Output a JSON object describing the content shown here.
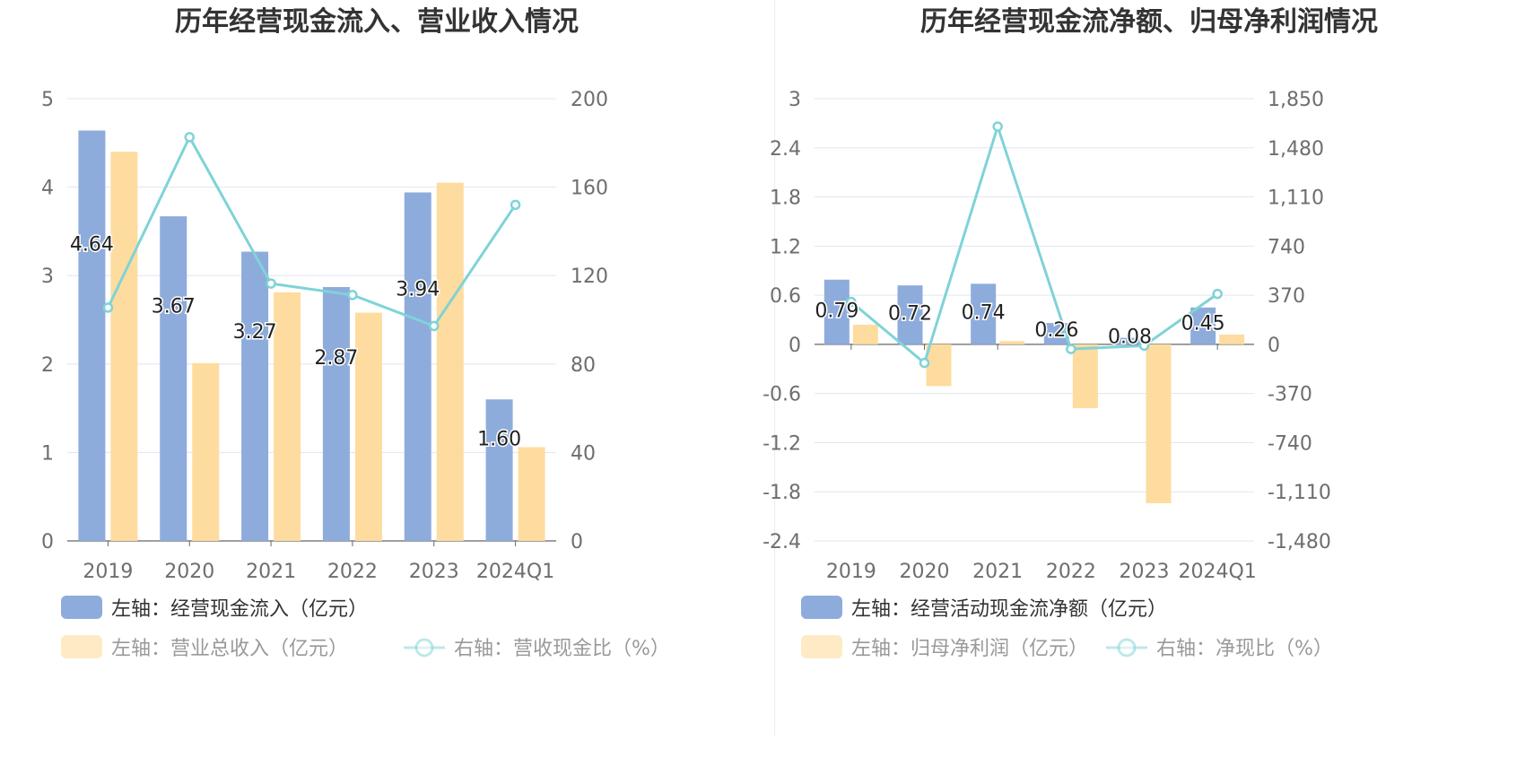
{
  "chart_data": [
    {
      "type": "bar",
      "title": "历年经营现金流入、营业收入情况",
      "categories": [
        "2019",
        "2020",
        "2021",
        "2022",
        "2023",
        "2024Q1"
      ],
      "y_left": {
        "ticks": [
          "0",
          "1",
          "2",
          "3",
          "4",
          "5"
        ],
        "range": [
          0,
          5
        ]
      },
      "y_right": {
        "ticks": [
          "0",
          "40",
          "80",
          "120",
          "160",
          "200"
        ],
        "range": [
          0,
          200
        ]
      },
      "grid": true,
      "series": [
        {
          "name": "左轴：经营现金流入（亿元）",
          "kind": "bar",
          "axis": "left",
          "color": "#8eacdb",
          "values": [
            4.64,
            3.67,
            3.27,
            2.87,
            3.94,
            1.6
          ],
          "labels": [
            "4.64",
            "3.67",
            "3.27",
            "2.87",
            "3.94",
            "1.60"
          ]
        },
        {
          "name": "左轴：营业总收入（亿元）",
          "kind": "bar",
          "axis": "left",
          "color": "#fedc9f",
          "values": [
            4.4,
            2.01,
            2.81,
            2.58,
            4.05,
            1.06
          ]
        },
        {
          "name": "右轴：营收现金比（%）",
          "kind": "line",
          "axis": "right",
          "color": "#7fd3d7",
          "values": [
            105.5,
            182.6,
            116.4,
            111.2,
            97.2,
            152.0
          ]
        }
      ],
      "legend_position": "bottom-left"
    },
    {
      "type": "bar",
      "title": "历年经营现金流净额、归母净利润情况",
      "categories": [
        "2019",
        "2020",
        "2021",
        "2022",
        "2023",
        "2024Q1"
      ],
      "y_left": {
        "ticks": [
          "-2.4",
          "-1.8",
          "-1.2",
          "-0.6",
          "0",
          "0.6",
          "1.2",
          "1.8",
          "2.4",
          "3"
        ],
        "range": [
          -2.4,
          3
        ]
      },
      "y_right": {
        "ticks": [
          "-1,480",
          "-1,110",
          "-740",
          "-370",
          "0",
          "370",
          "740",
          "1,110",
          "1,480",
          "1,850"
        ],
        "range": [
          -1480,
          1850
        ]
      },
      "grid": true,
      "series": [
        {
          "name": "左轴：经营活动现金流净额（亿元）",
          "kind": "bar",
          "axis": "left",
          "color": "#8eacdb",
          "values": [
            0.79,
            0.72,
            0.74,
            0.26,
            0.08,
            0.45
          ],
          "labels": [
            "0.79",
            "0.72",
            "0.74",
            "0.26",
            "0.08",
            "0.45"
          ]
        },
        {
          "name": "左轴：归母净利润（亿元）",
          "kind": "bar",
          "axis": "left",
          "color": "#fedc9f",
          "values": [
            0.24,
            -0.51,
            0.04,
            -0.78,
            -1.94,
            0.12
          ]
        },
        {
          "name": "右轴：净现比（%）",
          "kind": "line",
          "axis": "right",
          "color": "#7fd3d7",
          "values": [
            320,
            -140,
            1640,
            -35,
            -10,
            380
          ]
        }
      ],
      "legend_position": "bottom-left"
    }
  ]
}
